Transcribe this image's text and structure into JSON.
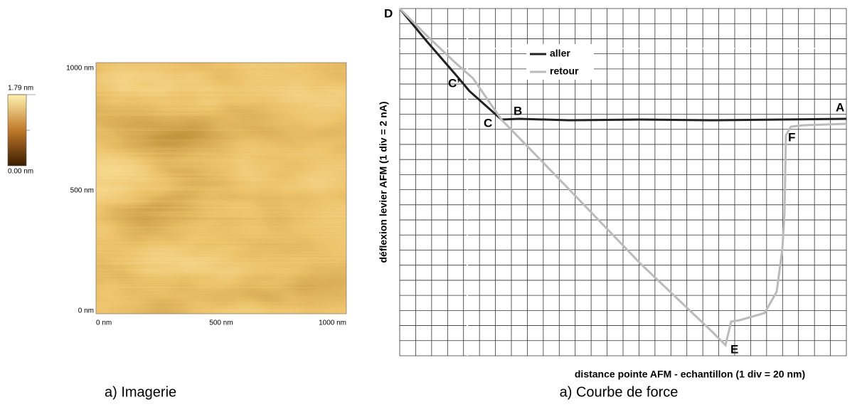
{
  "colorbar": {
    "max": "1.79 nm",
    "min": "0.00 nm"
  },
  "image": {
    "y_ticks": [
      "1000 nm",
      "500 nm",
      "0 nm"
    ],
    "x_ticks": [
      "0 nm",
      "500 nm",
      "1000 nm"
    ],
    "caption": "a) Imagerie"
  },
  "force_curve": {
    "legend": [
      "aller",
      "retour"
    ],
    "points": [
      "D",
      "C’",
      "C",
      "B",
      "A",
      "F",
      "E"
    ],
    "y_label": "déflexion levier AFM (1 div = 2 nA)",
    "x_label": "distance pointe AFM - echantillon (1 div = 20 nm)",
    "caption": "a) Courbe de force"
  }
}
